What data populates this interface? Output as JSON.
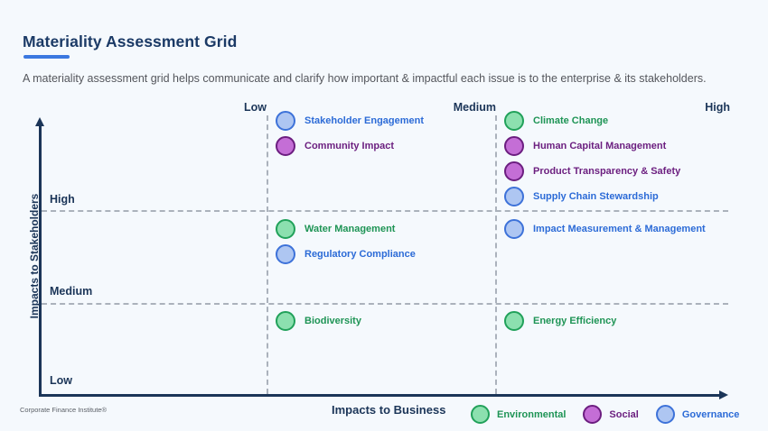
{
  "page": {
    "title": "Materiality Assessment Grid",
    "subtitle": "A materiality assessment grid helps communicate and clarify how important & impactful each issue is to the enterprise & its stakeholders.",
    "footer_brand": "Corporate Finance Institute®"
  },
  "axes": {
    "x_label": "Impacts to Business",
    "y_label": "Impacts to Stakeholders",
    "x_ticks": [
      "Low",
      "Medium",
      "High"
    ],
    "y_ticks": [
      "High",
      "Medium",
      "Low"
    ]
  },
  "colors": {
    "background": "#F5F9FD",
    "accent": "#3B78E0",
    "navy": "#1B3558",
    "dashed_line": "#ABB2BC",
    "environmental": {
      "fill": "#8CE0AF",
      "stroke": "#21A15A",
      "text": "#1E9455"
    },
    "social": {
      "fill": "#C46ED6",
      "stroke": "#6C1E80",
      "text": "#6B1E7F"
    },
    "governance": {
      "fill": "#AEC6F2",
      "stroke": "#3D72D9",
      "text": "#2C6BD7"
    }
  },
  "chart_data": {
    "type": "scatter",
    "title": "Materiality Assessment Grid",
    "xlabel": "Impacts to Business",
    "ylabel": "Impacts to Stakeholders",
    "x_categories": [
      "Low",
      "Medium",
      "High"
    ],
    "y_categories": [
      "Low",
      "Medium",
      "High"
    ],
    "grid": "dashed quadrant lines",
    "legend_position": "bottom-right",
    "legend": [
      {
        "label": "Environmental",
        "category": "environmental"
      },
      {
        "label": "Social",
        "category": "social"
      },
      {
        "label": "Governance",
        "category": "governance"
      }
    ],
    "points": [
      {
        "label": "Stakeholder Engagement",
        "category": "governance",
        "x": "Low",
        "y": "High"
      },
      {
        "label": "Community Impact",
        "category": "social",
        "x": "Low",
        "y": "High"
      },
      {
        "label": "Climate Change",
        "category": "environmental",
        "x": "Medium",
        "y": "High"
      },
      {
        "label": "Human Capital Management",
        "category": "social",
        "x": "Medium",
        "y": "High"
      },
      {
        "label": "Product Transparency & Safety",
        "category": "social",
        "x": "Medium",
        "y": "High"
      },
      {
        "label": "Supply Chain Stewardship",
        "category": "governance",
        "x": "Medium",
        "y": "High"
      },
      {
        "label": "Water Management",
        "category": "environmental",
        "x": "Low",
        "y": "Medium"
      },
      {
        "label": "Regulatory Compliance",
        "category": "governance",
        "x": "Low",
        "y": "Medium"
      },
      {
        "label": "Impact Measurement & Management",
        "category": "governance",
        "x": "Medium",
        "y": "Medium"
      },
      {
        "label": "Biodiversity",
        "category": "environmental",
        "x": "Low",
        "y": "Low"
      },
      {
        "label": "Energy Efficiency",
        "category": "environmental",
        "x": "Medium",
        "y": "Low"
      }
    ]
  }
}
